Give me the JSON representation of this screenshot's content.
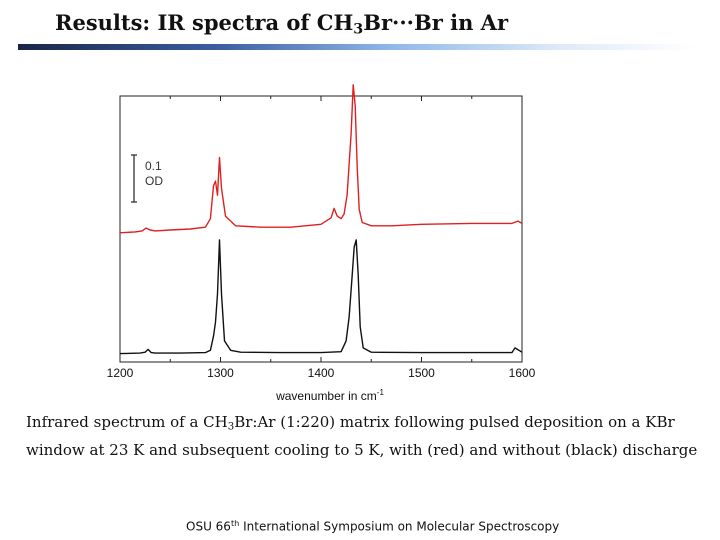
{
  "slide": {
    "title_prefix": "Results: IR spectra of CH",
    "title_sub": "3",
    "title_suffix": "Br···Br in Ar",
    "caption_prefix": "Infrared spectrum of a CH",
    "caption_sub": "3",
    "caption_suffix": "Br:Ar (1:220) matrix following pulsed deposition on a KBr window at 23 K and subsequent cooling to 5 K, with (red) and without (black) discharge",
    "footer_prefix": "OSU 66",
    "footer_sup": "th",
    "footer_suffix": " International Symposium on Molecular Spectroscopy"
  },
  "chart_data": {
    "type": "line",
    "xlabel_prefix": "wavenumber in cm",
    "xlabel_sup": "-1",
    "ylabel": "",
    "xlim": [
      1200,
      1600
    ],
    "x_ticks": [
      1200,
      1300,
      1400,
      1500,
      1600
    ],
    "scale_bar": {
      "line1": "0.1",
      "line2": "OD",
      "value": 0.1
    },
    "series": [
      {
        "color": "#e02020",
        "x": [
          1200,
          1215,
          1222,
          1226,
          1230,
          1235,
          1250,
          1270,
          1285,
          1290,
          1293,
          1295,
          1297,
          1299,
          1301,
          1305,
          1315,
          1340,
          1370,
          1400,
          1410,
          1413,
          1416,
          1420,
          1423,
          1426,
          1430,
          1432,
          1434,
          1436,
          1438,
          1441,
          1450,
          1470,
          1500,
          1550,
          1590,
          1596,
          1600
        ],
        "y": [
          0.26,
          0.262,
          0.264,
          0.27,
          0.266,
          0.264,
          0.266,
          0.268,
          0.272,
          0.29,
          0.36,
          0.37,
          0.34,
          0.42,
          0.355,
          0.295,
          0.275,
          0.272,
          0.272,
          0.278,
          0.292,
          0.312,
          0.296,
          0.29,
          0.3,
          0.34,
          0.47,
          0.575,
          0.53,
          0.4,
          0.31,
          0.282,
          0.275,
          0.275,
          0.278,
          0.28,
          0.28,
          0.285,
          0.28
        ]
      },
      {
        "color": "#111111",
        "x": [
          1200,
          1220,
          1225,
          1228,
          1231,
          1235,
          1260,
          1285,
          1290,
          1293,
          1295,
          1297,
          1299,
          1301,
          1304,
          1310,
          1320,
          1360,
          1400,
          1420,
          1425,
          1428,
          1431,
          1433,
          1435,
          1437,
          1439,
          1442,
          1450,
          1500,
          1590,
          1593,
          1600
        ],
        "y": [
          0.003,
          0.004,
          0.006,
          0.012,
          0.005,
          0.004,
          0.004,
          0.005,
          0.01,
          0.04,
          0.07,
          0.13,
          0.245,
          0.13,
          0.03,
          0.01,
          0.006,
          0.005,
          0.005,
          0.007,
          0.03,
          0.08,
          0.17,
          0.23,
          0.245,
          0.17,
          0.06,
          0.015,
          0.006,
          0.005,
          0.005,
          0.015,
          0.006
        ]
      }
    ]
  }
}
